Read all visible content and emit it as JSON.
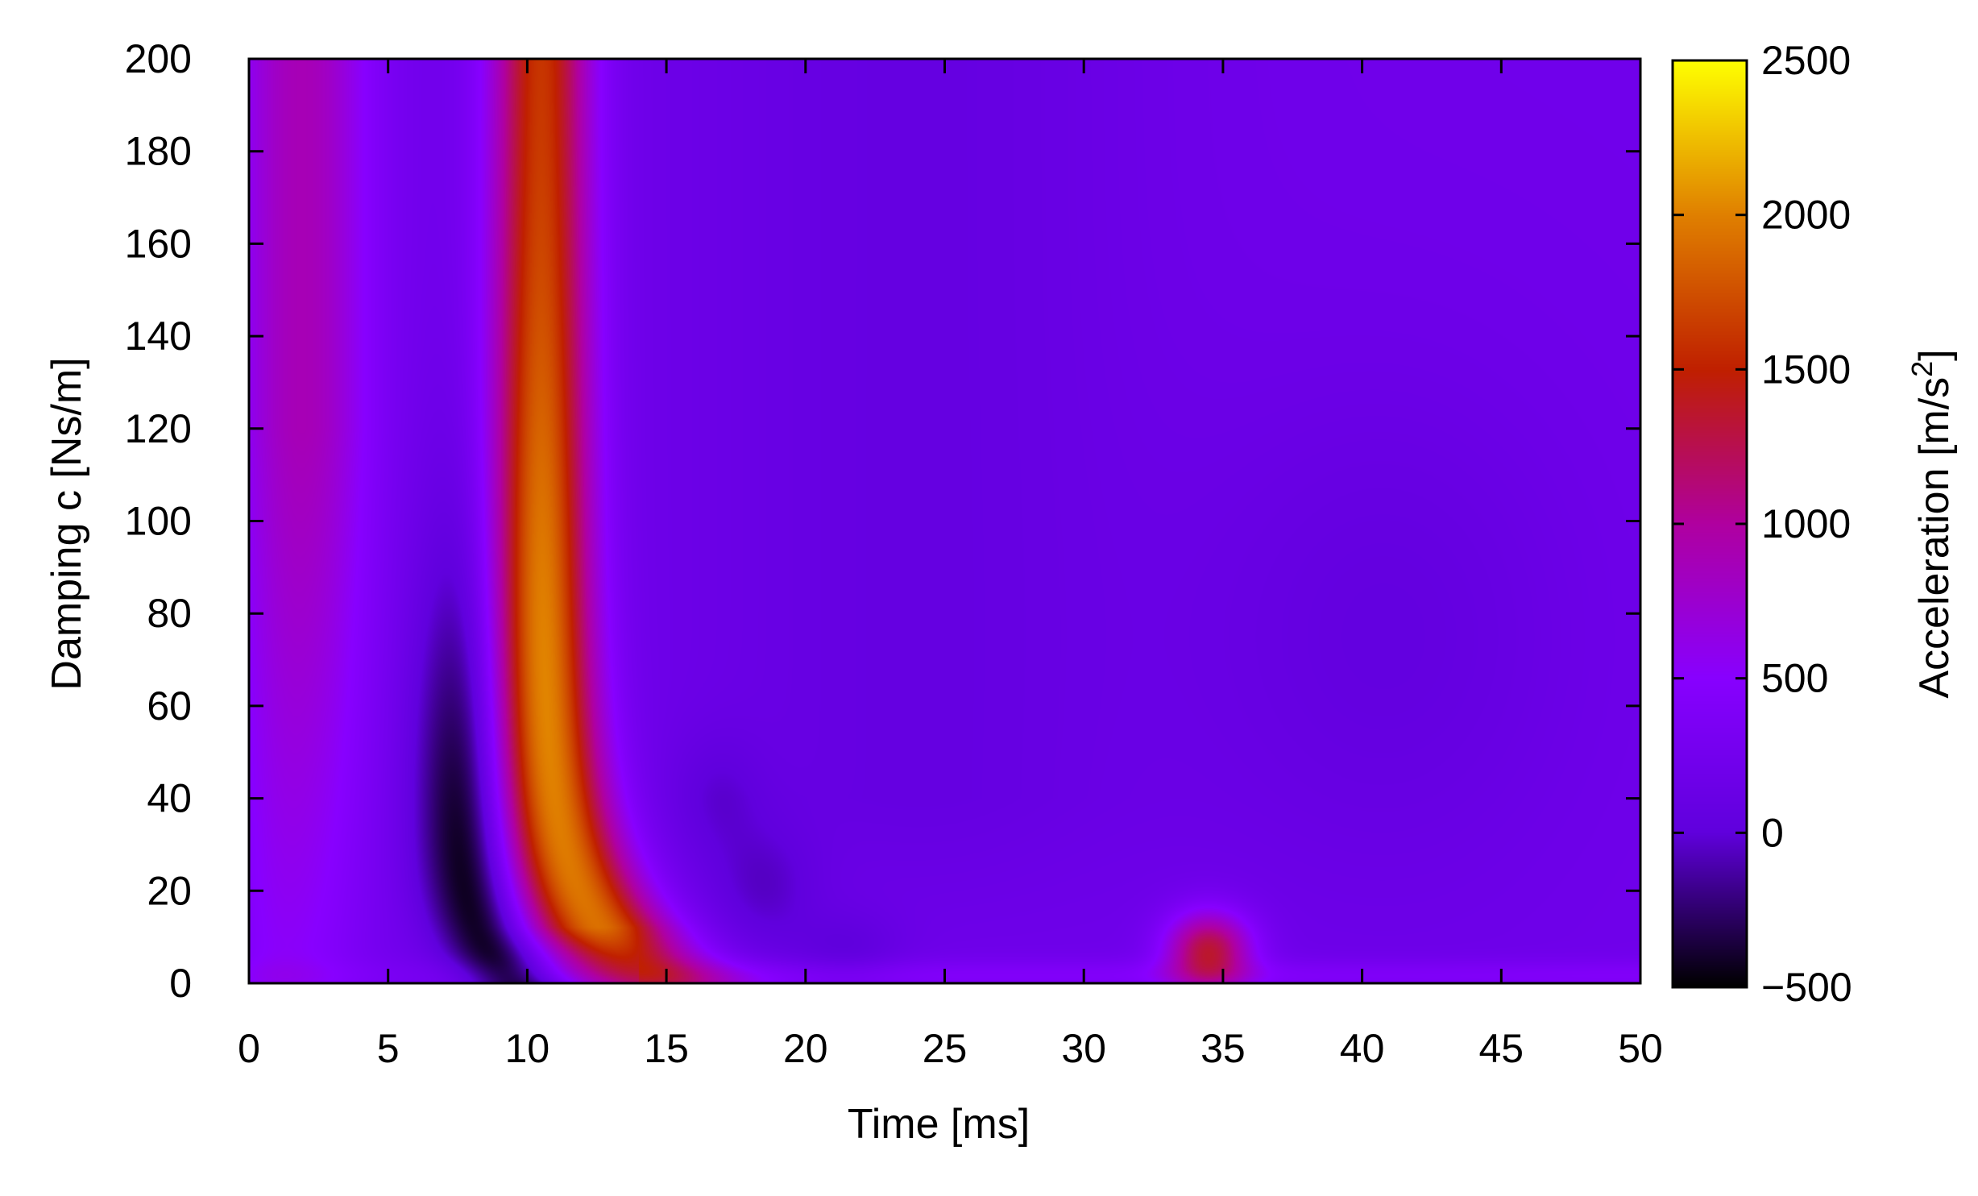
{
  "chart_data": {
    "type": "heatmap",
    "title": "",
    "xlabel": "Time [ms]",
    "ylabel": "Damping c [Ns/m]",
    "colorbar_label": "Acceleration [m/s",
    "colorbar_label_sup": "2",
    "colorbar_label_end": "]",
    "xlim": [
      0,
      50
    ],
    "ylim": [
      0,
      200
    ],
    "clim": [
      -500,
      2500
    ],
    "x_ticks": [
      0,
      5,
      10,
      15,
      20,
      25,
      30,
      35,
      40,
      45,
      50
    ],
    "y_ticks": [
      0,
      20,
      40,
      60,
      80,
      100,
      120,
      140,
      160,
      180,
      200
    ],
    "c_ticks": [
      -500,
      0,
      500,
      1000,
      1500,
      2000,
      2500
    ],
    "x_tick_labels": [
      "0",
      "5",
      "10",
      "15",
      "20",
      "25",
      "30",
      "35",
      "40",
      "45",
      "50"
    ],
    "y_tick_labels": [
      "0",
      "20",
      "40",
      "60",
      "80",
      "100",
      "120",
      "140",
      "160",
      "180",
      "200"
    ],
    "c_tick_labels": [
      "−500",
      "0",
      "500",
      "1000",
      "1500",
      "2000",
      "2500"
    ],
    "colormap": [
      "#000000",
      "#6000dd",
      "#8800ff",
      "#b000a0",
      "#c02000",
      "#e08000",
      "#ffff00"
    ],
    "features": [
      {
        "feature": "early positive band",
        "time_ms": 2,
        "damping_range": [
          60,
          200
        ],
        "peak_value": 850
      },
      {
        "feature": "negative trough",
        "time_ms": 8,
        "damping_range": [
          5,
          80
        ],
        "min_value": -450
      },
      {
        "feature": "main peak ridge",
        "time_ms_at_c200": 10.5,
        "time_ms_at_c10": 14.5,
        "peak_value": 2000,
        "max_at_damping": 60
      },
      {
        "feature": "secondary peak",
        "time_ms": 34.5,
        "damping": 6,
        "peak_value": 1300
      },
      {
        "feature": "low-damping band",
        "damping_range": [
          0,
          5
        ],
        "time_range_ms": [
          15,
          50
        ],
        "value": 500
      }
    ],
    "grid": false,
    "legend": "colorbar-right"
  }
}
